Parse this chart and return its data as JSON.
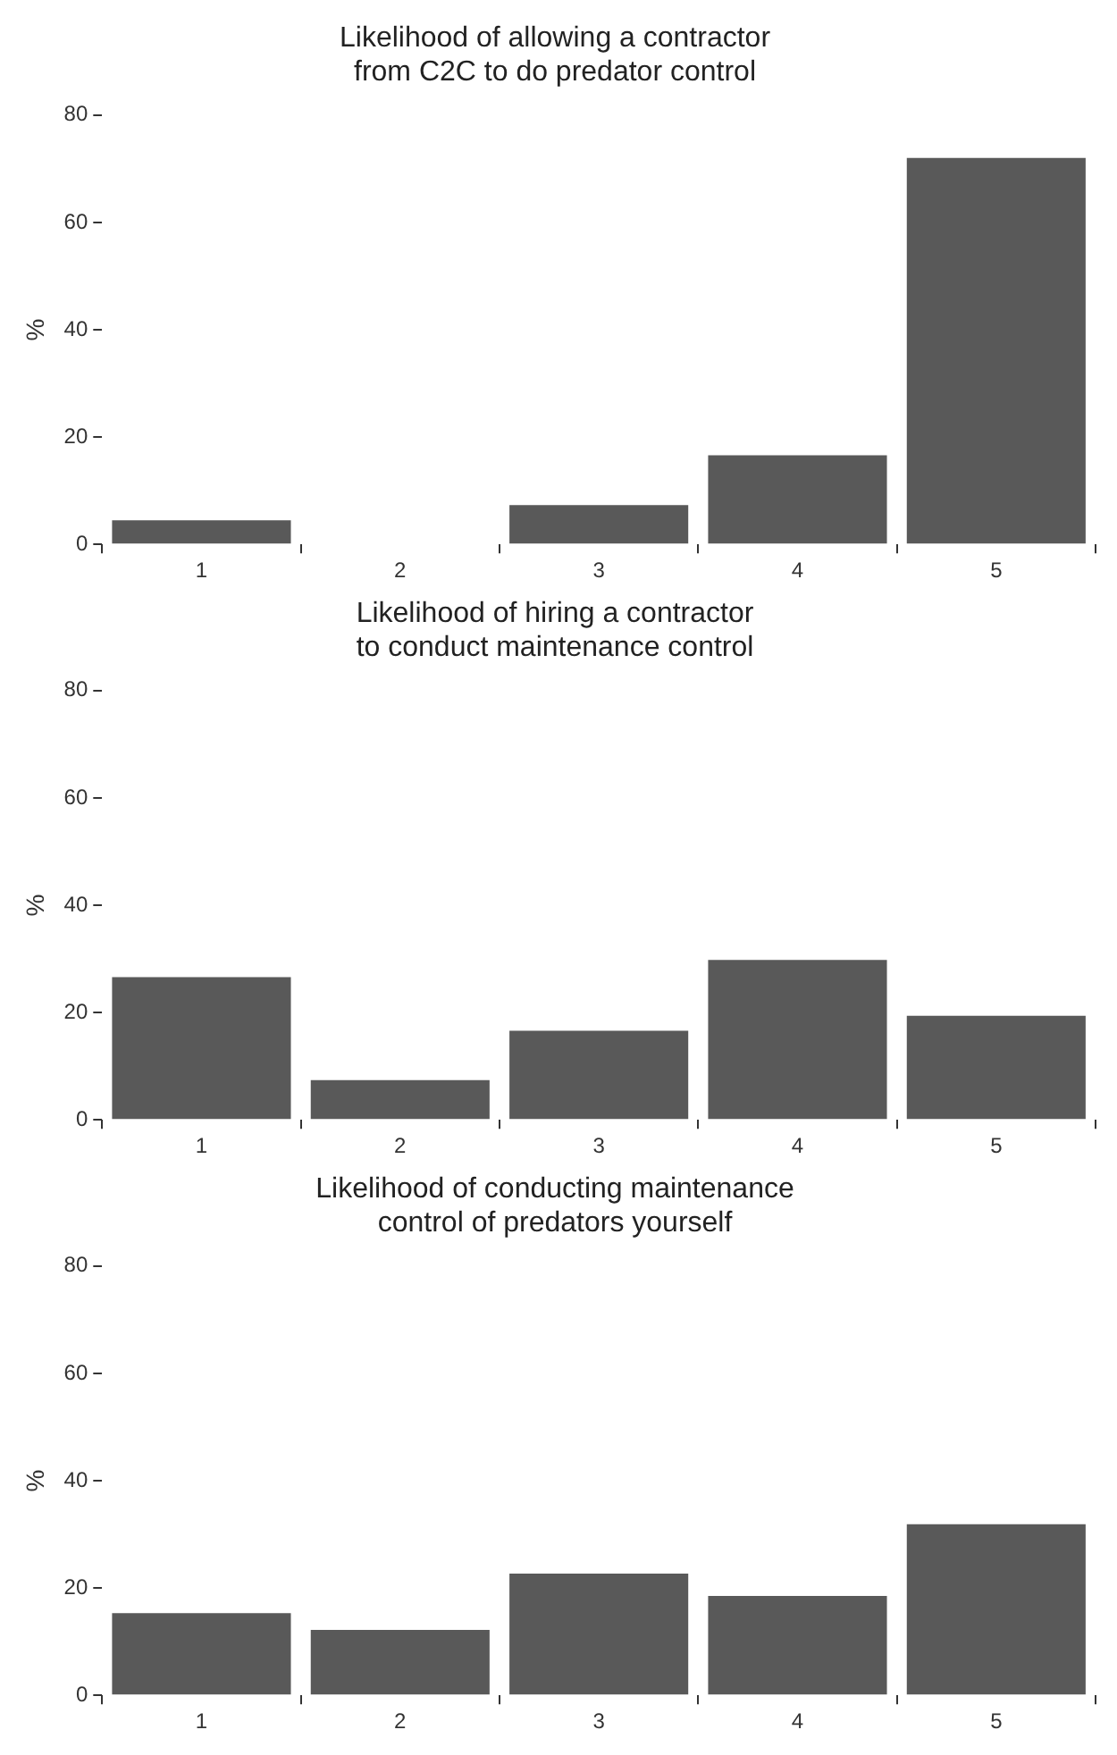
{
  "chart_data": [
    {
      "type": "bar",
      "title": "Likelihood of allowing a contractor\nfrom C2C to do predator control",
      "ylabel": "%",
      "categories": [
        "1",
        "2",
        "3",
        "4",
        "5"
      ],
      "values": [
        4.5,
        0,
        7.3,
        16.6,
        72
      ],
      "color": "#595959",
      "ylim": [
        0,
        80
      ],
      "yticks": [
        0,
        20,
        40,
        60,
        80
      ],
      "grid": false,
      "legend": false
    },
    {
      "type": "bar",
      "title": "Likelihood of hiring a contractor\nto conduct maintenance control",
      "ylabel": "%",
      "categories": [
        "1",
        "2",
        "3",
        "4",
        "5"
      ],
      "values": [
        26.6,
        7.4,
        16.6,
        29.8,
        19.4
      ],
      "color": "#595959",
      "ylim": [
        0,
        80
      ],
      "yticks": [
        0,
        20,
        40,
        60,
        80
      ],
      "grid": false,
      "legend": false
    },
    {
      "type": "bar",
      "title": "Likelihood of conducting maintenance\ncontrol of predators yourself",
      "ylabel": "%",
      "categories": [
        "1",
        "2",
        "3",
        "4",
        "5"
      ],
      "values": [
        15.3,
        12.2,
        22.7,
        18.5,
        31.9
      ],
      "color": "#595959",
      "ylim": [
        0,
        80
      ],
      "yticks": [
        0,
        20,
        40,
        60,
        80
      ],
      "grid": false,
      "legend": false
    }
  ]
}
